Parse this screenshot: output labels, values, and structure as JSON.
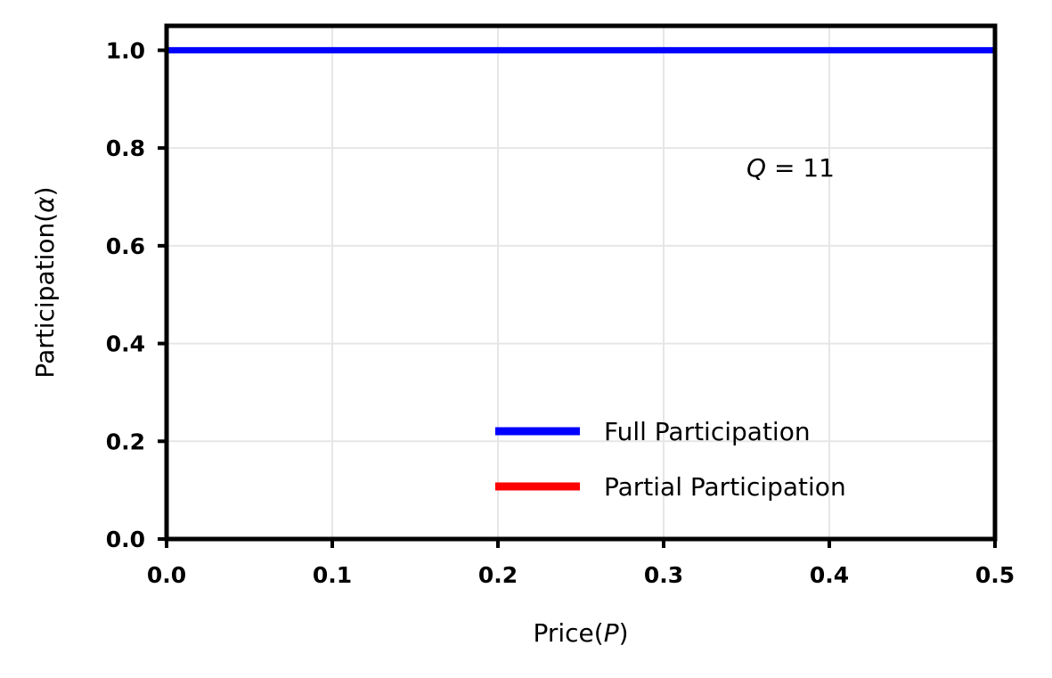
{
  "chart_data": {
    "type": "line",
    "xlabel_prefix": "Price(",
    "xlabel_var": "P",
    "xlabel_suffix": ")",
    "ylabel_prefix": "Participation(",
    "ylabel_var": "α",
    "ylabel_suffix": ")",
    "xlim": [
      0.0,
      0.5
    ],
    "ylim": [
      0.0,
      1.05
    ],
    "xticks": [
      "0.0",
      "0.1",
      "0.2",
      "0.3",
      "0.4",
      "0.5"
    ],
    "yticks": [
      "0.0",
      "0.2",
      "0.4",
      "0.6",
      "0.8",
      "1.0"
    ],
    "grid": true,
    "legend_position": "lower-right",
    "annotation": {
      "var": "Q",
      "rest": " = 11",
      "x": 0.35,
      "y": 0.76
    },
    "series": [
      {
        "name": "Full Participation",
        "color": "#0000ff",
        "x": [
          0.0,
          0.5
        ],
        "y": [
          1.0,
          1.0
        ]
      },
      {
        "name": "Partial Participation",
        "color": "#ff0000",
        "x": [],
        "y": []
      }
    ]
  }
}
